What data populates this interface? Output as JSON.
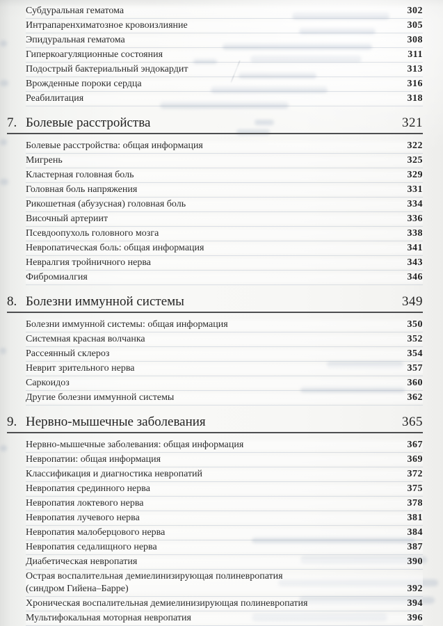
{
  "document": {
    "type": "book-table-of-contents",
    "language": "ru"
  },
  "colors": {
    "text": "#2b2b2b",
    "paper": "#f6f6f4",
    "heading_rule": "#4d4e50",
    "row_separator": "#a0acc0",
    "bleedthrough": "#93a1ba"
  },
  "toc": {
    "sections": [
      {
        "number": "",
        "title": "",
        "page": "",
        "items": [
          {
            "title": "Субдуральная гематома",
            "page": "302"
          },
          {
            "title": "Интрапаренхиматозное кровоизлияние",
            "page": "305"
          },
          {
            "title": "Эпидуральная гематома",
            "page": "308"
          },
          {
            "title": "Гиперкоагуляционные состояния",
            "page": "311"
          },
          {
            "title": "Подострый бактериальный эндокардит",
            "page": "313"
          },
          {
            "title": "Врожденные пороки сердца",
            "page": "316"
          },
          {
            "title": "Реабилитация",
            "page": "318"
          }
        ]
      },
      {
        "number": "7.",
        "title": "Болевые расстройства",
        "page": "321",
        "items": [
          {
            "title": "Болевые расстройства: общая информация",
            "page": "322"
          },
          {
            "title": "Мигрень",
            "page": "325"
          },
          {
            "title": "Кластерная головная боль",
            "page": "329"
          },
          {
            "title": "Головная боль напряжения",
            "page": "331"
          },
          {
            "title": "Рикошетная (абузусная) головная боль",
            "page": "334"
          },
          {
            "title": "Височный артериит",
            "page": "336"
          },
          {
            "title": "Псевдоопухоль головного мозга",
            "page": "338"
          },
          {
            "title": "Невропатическая боль: общая информация",
            "page": "341"
          },
          {
            "title": "Невралгия тройничного нерва",
            "page": "343"
          },
          {
            "title": "Фибромиалгия",
            "page": "346"
          }
        ]
      },
      {
        "number": "8.",
        "title": "Болезни иммунной системы",
        "page": "349",
        "items": [
          {
            "title": "Болезни иммунной системы: общая информация",
            "page": "350"
          },
          {
            "title": "Системная красная волчанка",
            "page": "352"
          },
          {
            "title": "Рассеянный склероз",
            "page": "354"
          },
          {
            "title": "Неврит зрительного нерва",
            "page": "357"
          },
          {
            "title": "Саркоидоз",
            "page": "360"
          },
          {
            "title": "Другие болезни иммунной системы",
            "page": "362"
          }
        ]
      },
      {
        "number": "9.",
        "title": "Нервно-мышечные заболевания",
        "page": "365",
        "items": [
          {
            "title": "Нервно-мышечные заболевания: общая информация",
            "page": "367"
          },
          {
            "title": "Невропатии: общая информация",
            "page": "369"
          },
          {
            "title": "Классификация и диагностика невропатий",
            "page": "372"
          },
          {
            "title": "Невропатия срединного нерва",
            "page": "375"
          },
          {
            "title": "Невропатия локтевого нерва",
            "page": "378"
          },
          {
            "title": "Невропатия лучевого нерва",
            "page": "381"
          },
          {
            "title": "Невропатия малоберцового нерва",
            "page": "384"
          },
          {
            "title": "Невропатия седалищного нерва",
            "page": "387"
          },
          {
            "title": "Диабетическая невропатия",
            "page": "390"
          },
          {
            "title": "Острая воспалительная демиелинизирующая полиневропатия\n(синдром Гийена–Барре)",
            "page": "392"
          },
          {
            "title": "Хроническая воспалительная демиелинизирующая полиневропатия",
            "page": "394"
          },
          {
            "title": "Мультифокальная моторная невропатия",
            "page": "396"
          }
        ]
      }
    ]
  }
}
